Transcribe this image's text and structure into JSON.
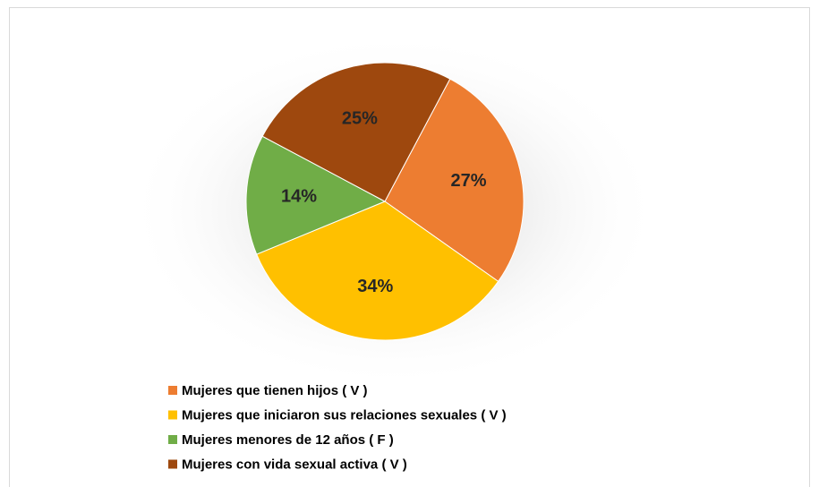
{
  "chart_data": {
    "type": "pie",
    "categories": [
      "Mujeres que tienen hijos ( V )",
      "Mujeres que iniciaron sus relaciones sexuales ( V )",
      "Mujeres menores de 12 años ( F )",
      "Mujeres con vida sexual activa ( V )"
    ],
    "values": [
      27,
      34,
      14,
      25
    ],
    "value_labels": [
      "27%",
      "34%",
      "14%",
      "25%"
    ],
    "colors": [
      "#ED7D31",
      "#FFC000",
      "#70AD47",
      "#9E480E"
    ],
    "legend": "bottom"
  }
}
